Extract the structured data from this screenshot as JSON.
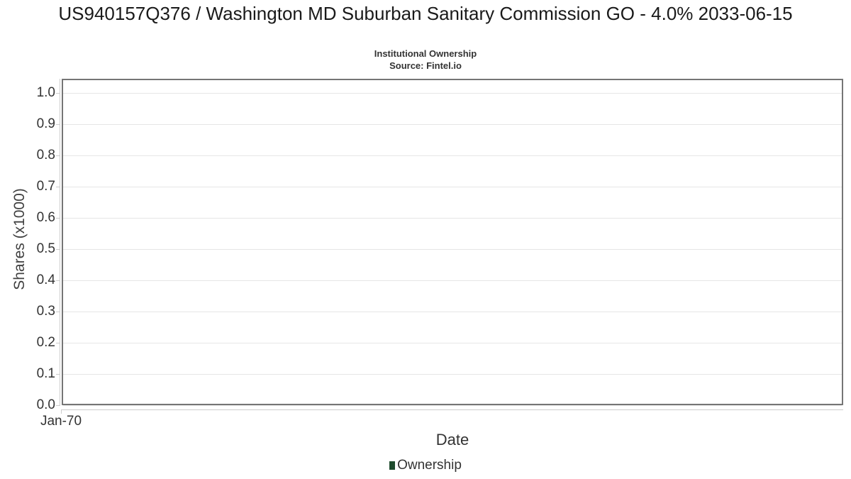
{
  "header": {
    "title": "US940157Q376 / Washington MD Suburban Sanitary Commission GO - 4.0% 2033-06-15",
    "subtitle": "Institutional Ownership",
    "source": "Source: Fintel.io"
  },
  "chart_data": {
    "type": "line",
    "title": "US940157Q376 / Washington MD Suburban Sanitary Commission GO - 4.0% 2033-06-15",
    "subtitle": "Institutional Ownership",
    "source": "Source: Fintel.io",
    "xlabel": "Date",
    "ylabel": "Shares (x1000)",
    "x_ticks": [
      "Jan-70"
    ],
    "y_tick_labels": [
      "1.0",
      "0.9",
      "0.8",
      "0.7",
      "0.6",
      "0.5",
      "0.4",
      "0.3",
      "0.2",
      "0.1",
      "0.0"
    ],
    "ylim": [
      0.0,
      1.045
    ],
    "xlim_note": "no data plotted; axis shows single epoch tick Jan-70",
    "grid": "horizontal",
    "legend_position": "bottom-center",
    "series": [
      {
        "name": "Ownership",
        "color": "#1e4b2d",
        "x": [],
        "values": []
      }
    ]
  },
  "colors": {
    "plot_border": "#757575",
    "gridline": "#e6e6e6",
    "axis_line": "#cccccc",
    "text_primary": "#1a1a1a",
    "text_secondary": "#333333",
    "series_ownership": "#1e4b2d"
  }
}
